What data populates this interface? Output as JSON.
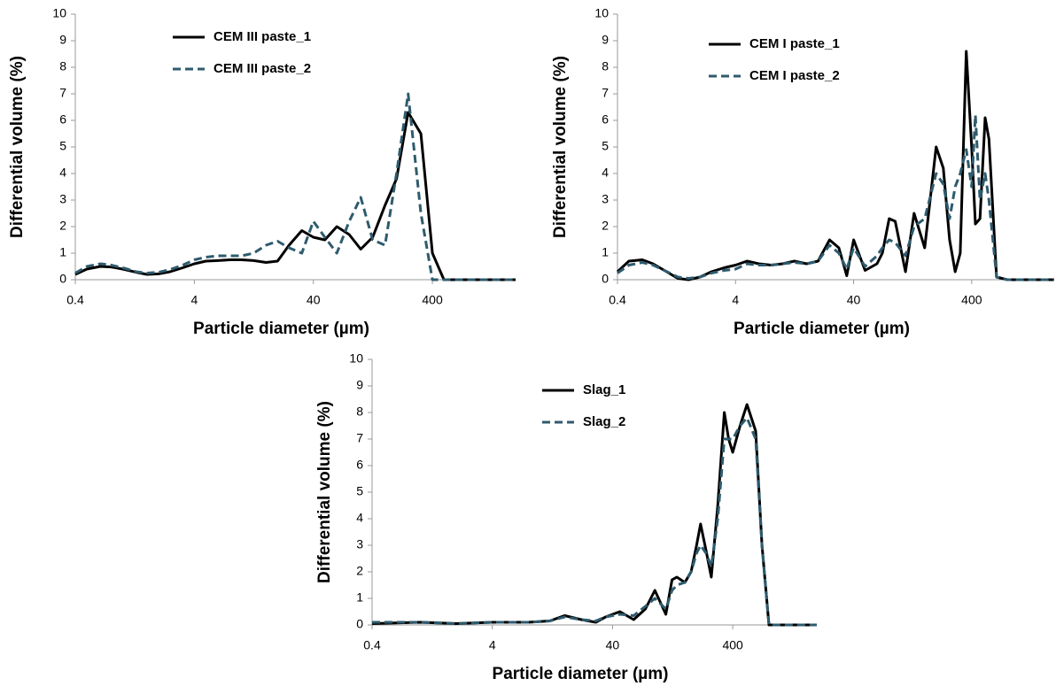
{
  "chart_data": [
    {
      "type": "line",
      "x_label": "Particle diameter (µm)",
      "y_label": "Differential volume (%)",
      "x_scale": "log",
      "xlim": [
        0.4,
        2000
      ],
      "xticks": [
        0.4,
        4,
        40,
        400
      ],
      "ylim": [
        0,
        10
      ],
      "yticks": [
        0,
        1,
        2,
        3,
        4,
        5,
        6,
        7,
        8,
        9,
        10
      ],
      "legend": "upper left",
      "x": [
        0.4,
        0.5,
        0.65,
        0.8,
        1,
        1.3,
        1.6,
        2,
        2.5,
        3.2,
        4,
        5,
        6.3,
        8,
        10,
        12.6,
        16,
        20,
        25,
        32,
        40,
        50,
        63,
        80,
        100,
        126,
        160,
        200,
        250,
        320,
        400,
        500,
        630,
        800,
        1000,
        2000
      ],
      "series": [
        {
          "name": "CEM III paste_1",
          "color": "#000000",
          "style": "solid",
          "values": [
            0.2,
            0.4,
            0.5,
            0.48,
            0.4,
            0.28,
            0.2,
            0.22,
            0.3,
            0.45,
            0.6,
            0.7,
            0.72,
            0.75,
            0.75,
            0.72,
            0.65,
            0.7,
            1.3,
            1.85,
            1.6,
            1.5,
            2.0,
            1.7,
            1.15,
            1.6,
            2.8,
            3.8,
            6.3,
            5.5,
            1.0,
            0,
            0,
            0,
            0,
            0
          ]
        },
        {
          "name": "CEM III paste_2",
          "color": "#2e5b6e",
          "style": "dashed",
          "values": [
            0.25,
            0.5,
            0.6,
            0.55,
            0.45,
            0.3,
            0.25,
            0.28,
            0.38,
            0.55,
            0.75,
            0.85,
            0.9,
            0.9,
            0.9,
            1.0,
            1.3,
            1.45,
            1.2,
            1.0,
            2.2,
            1.6,
            1.0,
            2.2,
            3.1,
            1.5,
            1.3,
            4.0,
            7.0,
            2.5,
            0,
            0,
            0,
            0,
            0,
            0
          ]
        }
      ]
    },
    {
      "type": "line",
      "x_label": "Particle diameter (µm)",
      "y_label": "Differential volume (%)",
      "x_scale": "log",
      "xlim": [
        0.4,
        2000
      ],
      "xticks": [
        0.4,
        4,
        40,
        400
      ],
      "ylim": [
        0,
        10
      ],
      "yticks": [
        0,
        1,
        2,
        3,
        4,
        5,
        6,
        7,
        8,
        9,
        10
      ],
      "legend": "upper left",
      "x": [
        0.4,
        0.5,
        0.65,
        0.8,
        1,
        1.3,
        1.6,
        2,
        2.5,
        3.2,
        4,
        5,
        6.3,
        8,
        10,
        12.6,
        16,
        20,
        25,
        30,
        35,
        40,
        50,
        63,
        70,
        80,
        90,
        110,
        130,
        160,
        200,
        230,
        260,
        290,
        320,
        360,
        400,
        430,
        470,
        520,
        560,
        650,
        800,
        1000,
        2000
      ],
      "series": [
        {
          "name": "CEM I paste_1",
          "color": "#000000",
          "style": "solid",
          "values": [
            0.3,
            0.7,
            0.75,
            0.6,
            0.35,
            0.05,
            0.0,
            0.1,
            0.3,
            0.45,
            0.55,
            0.7,
            0.6,
            0.55,
            0.6,
            0.7,
            0.6,
            0.7,
            1.5,
            1.2,
            0.15,
            1.5,
            0.35,
            0.6,
            1.0,
            2.3,
            2.2,
            0.3,
            2.5,
            1.2,
            5.0,
            4.2,
            1.5,
            0.3,
            1.0,
            8.6,
            5.0,
            2.1,
            2.3,
            6.1,
            5.3,
            0.1,
            0,
            0,
            0
          ]
        },
        {
          "name": "CEM I paste_2",
          "color": "#2e5b6e",
          "style": "dashed",
          "values": [
            0.25,
            0.55,
            0.65,
            0.55,
            0.35,
            0.1,
            0.05,
            0.1,
            0.25,
            0.35,
            0.4,
            0.6,
            0.55,
            0.55,
            0.6,
            0.65,
            0.6,
            0.7,
            1.3,
            1.0,
            0.4,
            1.2,
            0.5,
            0.9,
            1.2,
            1.5,
            1.4,
            0.9,
            2.0,
            2.3,
            4.0,
            3.6,
            2.3,
            3.5,
            4.0,
            4.9,
            3.5,
            6.2,
            3.0,
            4.0,
            3.0,
            0.1,
            0,
            0,
            0
          ]
        }
      ]
    },
    {
      "type": "line",
      "x_label": "Particle diameter (µm)",
      "y_label": "Differential volume (%)",
      "x_scale": "log",
      "xlim": [
        0.4,
        2000
      ],
      "xticks": [
        0.4,
        4,
        40,
        400
      ],
      "ylim": [
        0,
        10
      ],
      "yticks": [
        0,
        1,
        2,
        3,
        4,
        5,
        6,
        7,
        8,
        9,
        10
      ],
      "legend": "upper left",
      "x": [
        0.4,
        1,
        2,
        4,
        8,
        12,
        16,
        22,
        29,
        35,
        46,
        60,
        75,
        90,
        111,
        125,
        137,
        160,
        180,
        200,
        216,
        240,
        265,
        300,
        340,
        370,
        400,
        460,
        525,
        620,
        700,
        800,
        1000,
        2000
      ],
      "series": [
        {
          "name": "Slag_1",
          "color": "#000000",
          "style": "solid",
          "values": [
            0.05,
            0.1,
            0.05,
            0.1,
            0.1,
            0.15,
            0.35,
            0.2,
            0.1,
            0.3,
            0.5,
            0.2,
            0.6,
            1.3,
            0.4,
            1.7,
            1.8,
            1.6,
            2.0,
            3.0,
            3.8,
            2.8,
            1.8,
            4.5,
            8.0,
            7.0,
            6.5,
            7.5,
            8.3,
            7.3,
            3.0,
            0,
            0,
            0
          ]
        },
        {
          "name": "Slag_2",
          "color": "#2e5b6e",
          "style": "dashed",
          "values": [
            0.1,
            0.1,
            0.05,
            0.1,
            0.1,
            0.15,
            0.3,
            0.2,
            0.15,
            0.3,
            0.4,
            0.35,
            0.7,
            1.0,
            0.6,
            1.3,
            1.5,
            1.6,
            2.0,
            2.7,
            3.0,
            2.7,
            2.2,
            4.0,
            7.0,
            7.0,
            7.0,
            7.5,
            7.8,
            7.0,
            3.0,
            0,
            0,
            0
          ]
        }
      ]
    }
  ]
}
